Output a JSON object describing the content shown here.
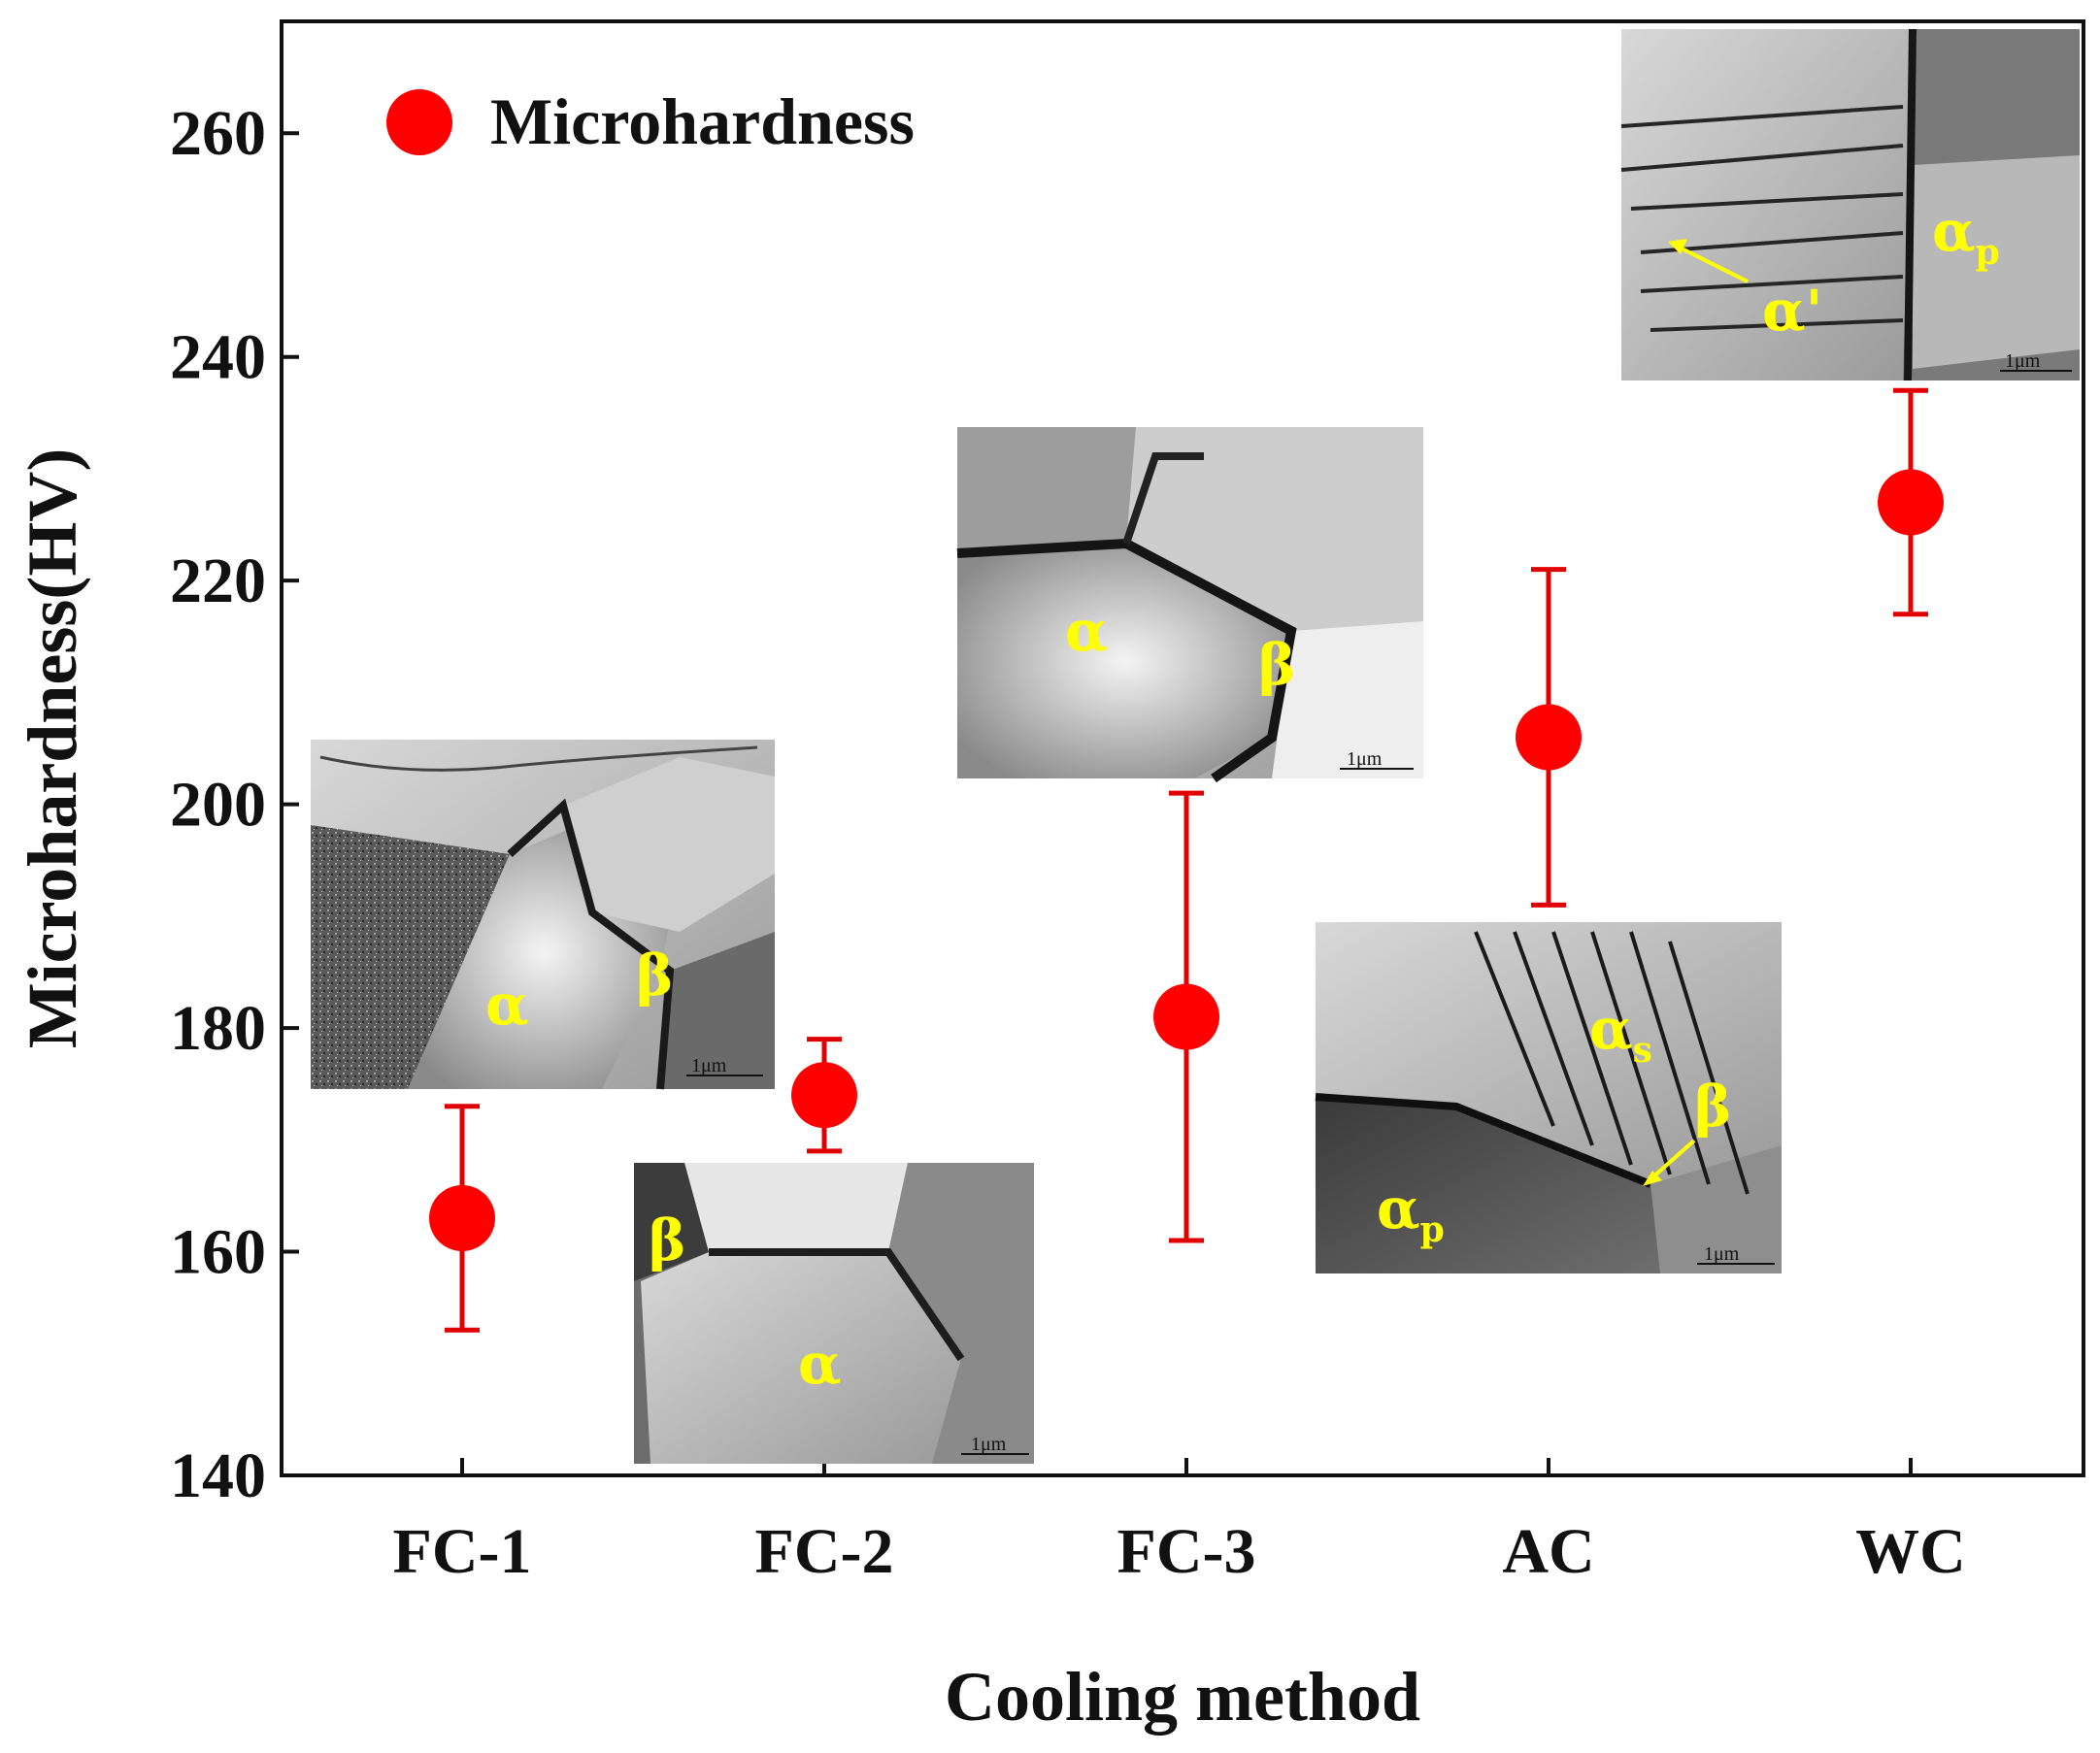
{
  "colors": {
    "marker": "#ff0000",
    "errorbar": "#e00000",
    "axis": "#111111",
    "phase_label": "#ffff00"
  },
  "legend": {
    "label": "Microhardness",
    "icon": "red-circle-marker"
  },
  "chart_data": {
    "type": "scatter",
    "title": "",
    "xlabel": "Cooling method",
    "ylabel": "Microhardness(HV)",
    "categories": [
      "FC-1",
      "FC-2",
      "FC-3",
      "AC",
      "WC"
    ],
    "ylim": [
      140,
      270
    ],
    "yticks": [
      "140",
      "160",
      "180",
      "200",
      "220",
      "240",
      "260"
    ],
    "series": [
      {
        "name": "Microhardness",
        "values": [
          163,
          174,
          181,
          206,
          227
        ],
        "err_low": [
          153,
          169,
          161,
          191,
          217
        ],
        "err_high": [
          173,
          179,
          201,
          221,
          237
        ]
      }
    ]
  },
  "insets": [
    {
      "id": "inset-fc1",
      "labels": [
        "α",
        "β"
      ],
      "scale_bar": "1μm"
    },
    {
      "id": "inset-fc2",
      "labels": [
        "β",
        "α"
      ],
      "scale_bar": "1μm"
    },
    {
      "id": "inset-fc3",
      "labels": [
        "α",
        "β"
      ],
      "scale_bar": "1μm"
    },
    {
      "id": "inset-ac",
      "labels": [
        "α",
        "s",
        "β",
        "α",
        "p"
      ],
      "scale_bar": "1μm"
    },
    {
      "id": "inset-wc",
      "labels": [
        "α",
        "p",
        "α'"
      ],
      "scale_bar": "1μm"
    }
  ]
}
